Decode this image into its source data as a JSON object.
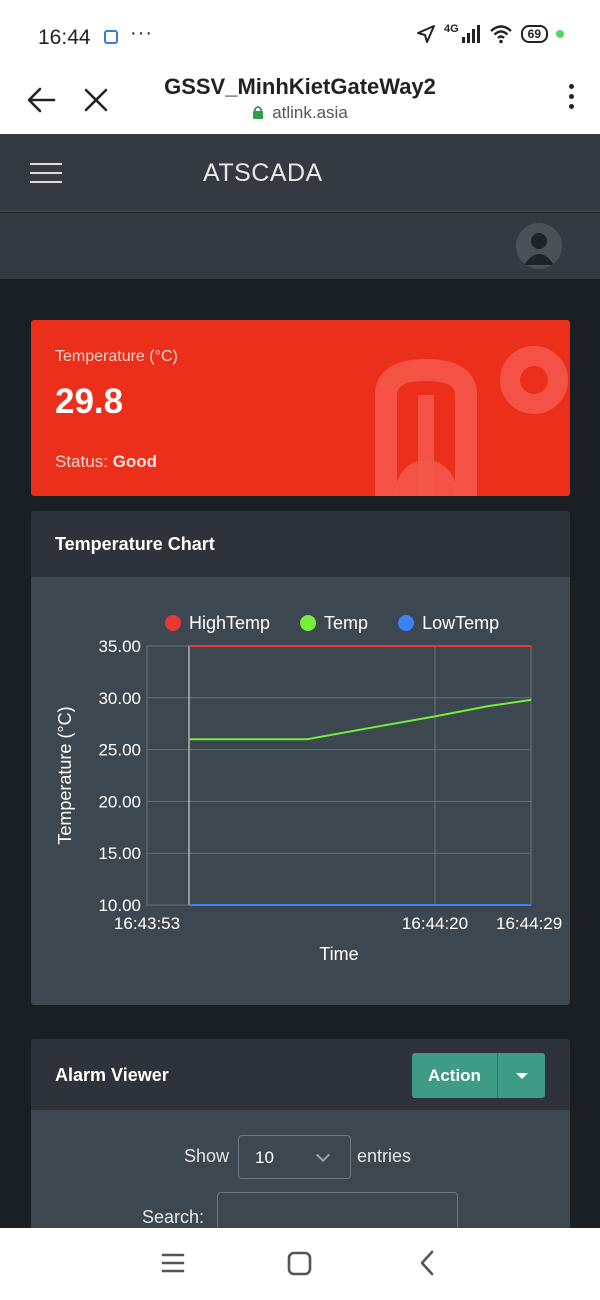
{
  "status_bar": {
    "time": "16:44",
    "dots": "···",
    "network": "4G",
    "battery": "69"
  },
  "browser": {
    "title": "GSSV_MinhKietGateWay2",
    "url": "atlink.asia"
  },
  "app": {
    "brand": "ATSCADA"
  },
  "temperature_card": {
    "label": "Temperature (°C)",
    "value": "29.8",
    "status_label": "Status: ",
    "status_value": "Good"
  },
  "chart_card": {
    "title": "Temperature Chart"
  },
  "chart_data": {
    "type": "line",
    "title": "",
    "xlabel": "Time",
    "ylabel": "Temperature (°C)",
    "ylim": [
      10,
      35
    ],
    "yticks": [
      "10.00",
      "15.00",
      "20.00",
      "25.00",
      "30.00",
      "35.00"
    ],
    "xticks": [
      "16:43:53",
      "16:44:20",
      "16:44:29"
    ],
    "x": [
      "16:43:53",
      "16:43:57",
      "16:44:03",
      "16:44:08",
      "16:44:15",
      "16:44:20",
      "16:44:25",
      "16:44:29"
    ],
    "legend_position": "top",
    "series": [
      {
        "name": "HighTemp",
        "color": "#e53935",
        "values": [
          35,
          35,
          35,
          35,
          35,
          35,
          35,
          35
        ]
      },
      {
        "name": "Temp",
        "color": "#76ee3a",
        "values": [
          26.0,
          26.0,
          26.0,
          26.0,
          27.3,
          28.2,
          29.2,
          29.8
        ]
      },
      {
        "name": "LowTemp",
        "color": "#3b82f6",
        "values": [
          10,
          10,
          10,
          10,
          10,
          10,
          10,
          10
        ]
      }
    ]
  },
  "alarm_card": {
    "title": "Alarm Viewer",
    "action_label": "Action",
    "show_label": "Show",
    "entries_value": "10",
    "entries_label": "entries",
    "search_label": "Search:"
  },
  "colors": {
    "danger": "#ec2f1a",
    "accent": "#3d9b86",
    "card_bg": "#3c474f",
    "header_bg": "#343a40"
  },
  "icons": {
    "back": "arrow-left-icon",
    "close": "close-icon",
    "lock": "lock-icon",
    "menu": "kebab-menu-icon",
    "hamburger": "hamburger-icon",
    "avatar": "user-avatar-icon",
    "thermometer": "thermometer-icon"
  }
}
